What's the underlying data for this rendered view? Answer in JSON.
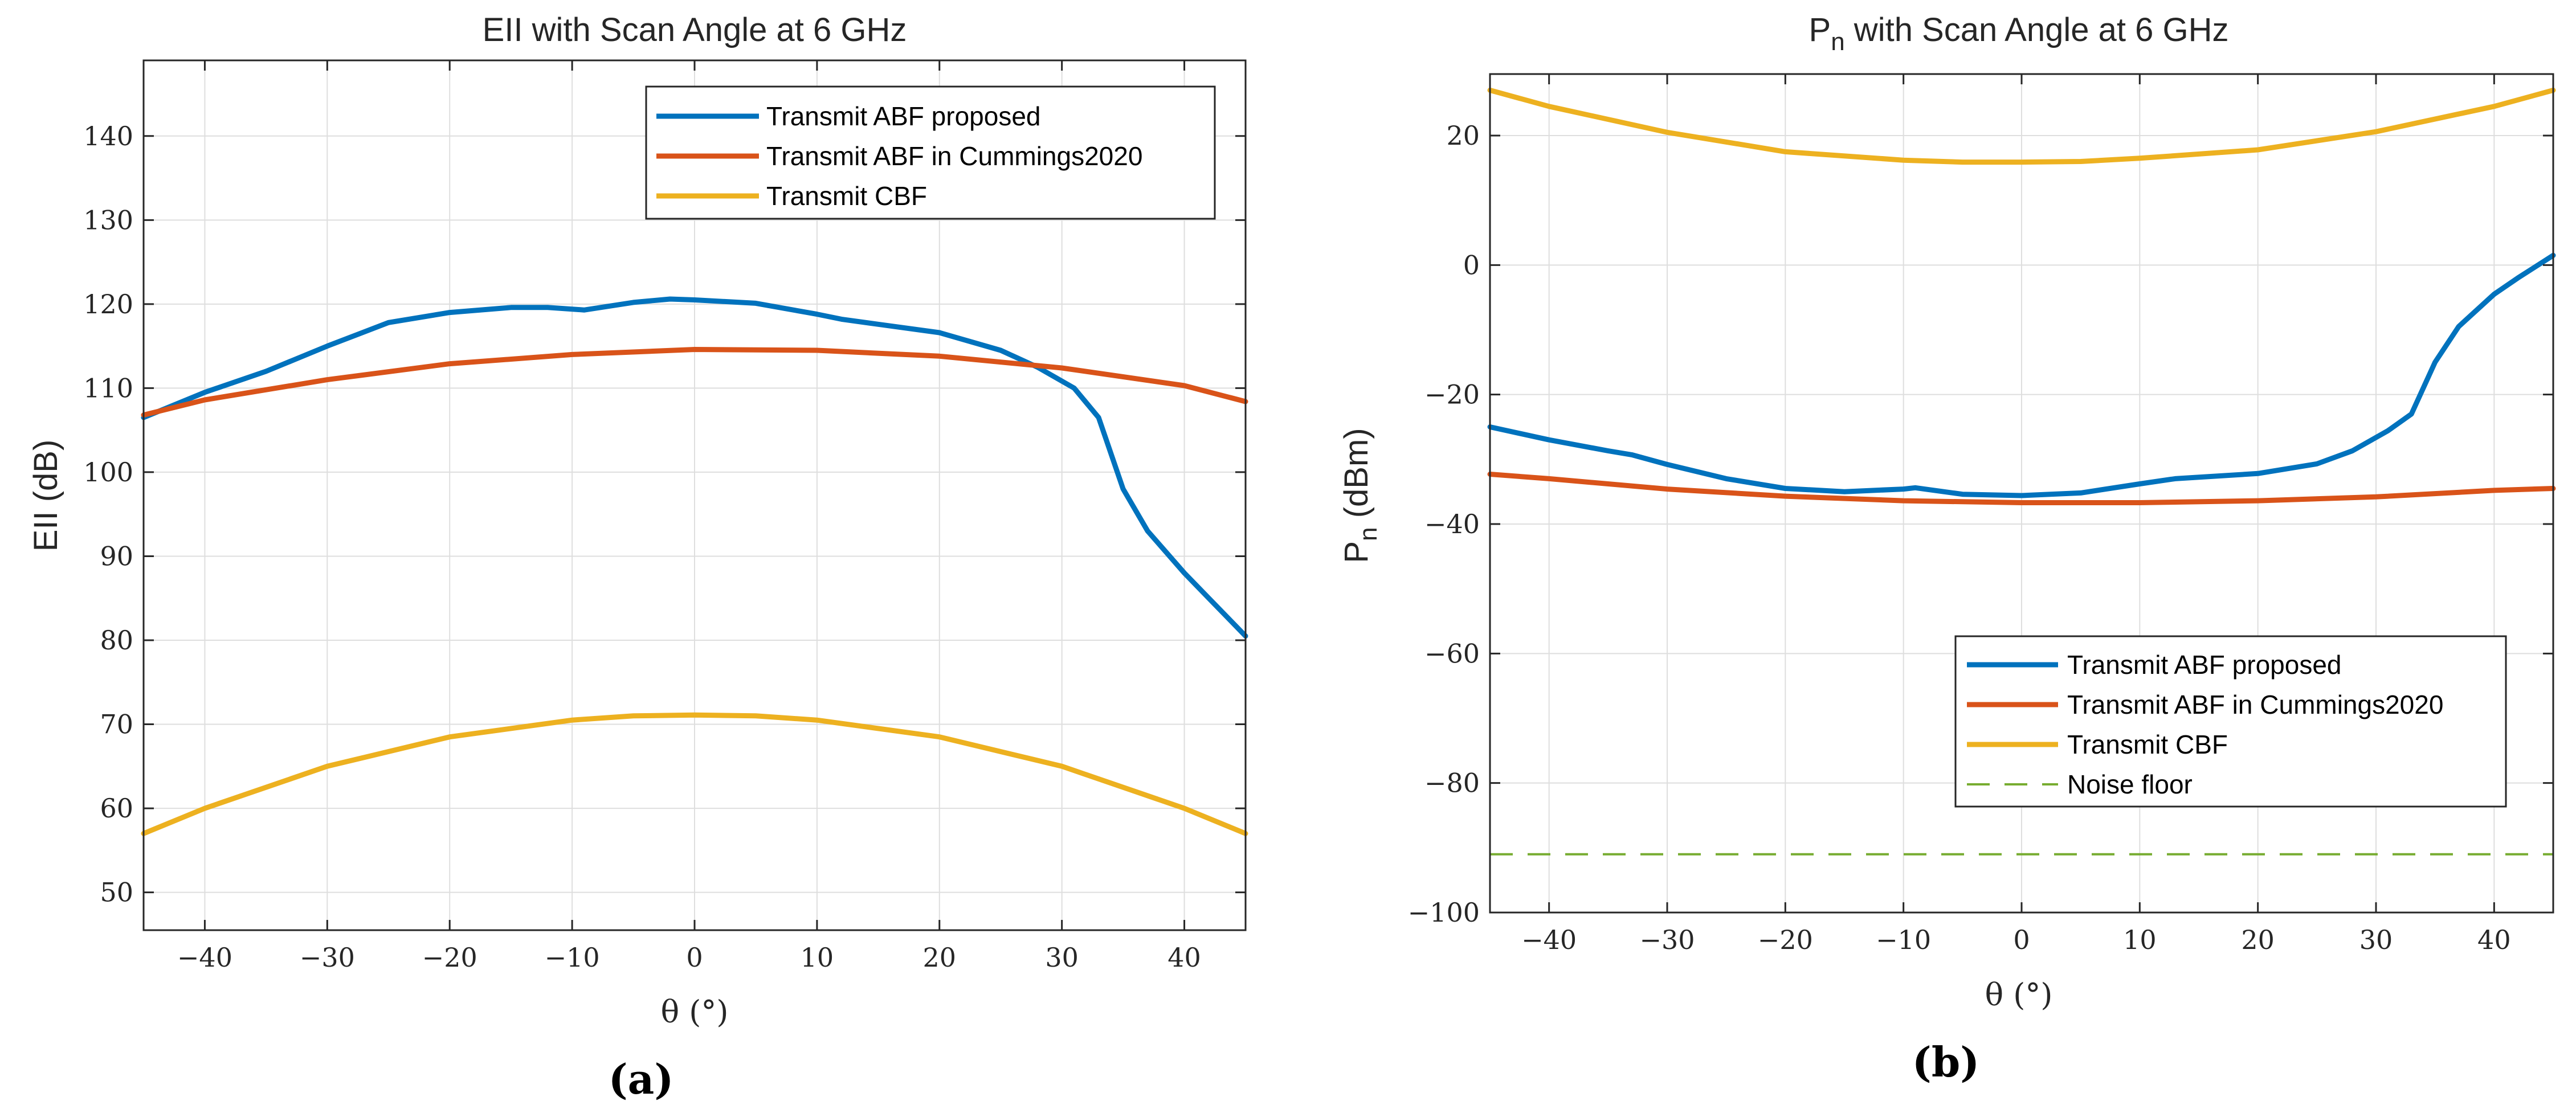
{
  "colors": {
    "blue": "#0072BD",
    "orange": "#D95319",
    "yellow": "#EDB120",
    "green": "#77AC30",
    "grid": "#dedede",
    "axis": "#262626"
  },
  "chart_data": [
    {
      "type": "line",
      "title": "EII with Scan Angle at 6 GHz",
      "xlabel": "θ (°)",
      "ylabel": "EII (dB)",
      "xlim": [
        -45,
        45
      ],
      "ylim": [
        45.5,
        149
      ],
      "xticks": [
        -40,
        -30,
        -20,
        -10,
        0,
        10,
        20,
        30,
        40
      ],
      "yticks": [
        50,
        60,
        70,
        80,
        90,
        100,
        110,
        120,
        130,
        140
      ],
      "grid": true,
      "legend_position": "top-right",
      "caption": "(a)",
      "series": [
        {
          "name": "Transmit ABF proposed",
          "color": "blue",
          "dash": false,
          "x": [
            -45,
            -40,
            -35,
            -30,
            -25,
            -20,
            -15,
            -12,
            -9,
            -5,
            -2,
            0,
            5,
            10,
            12,
            15,
            20,
            25,
            28,
            31,
            33,
            35,
            37,
            40,
            42,
            45
          ],
          "y": [
            106.5,
            109.5,
            112,
            115,
            117.8,
            119,
            119.6,
            119.6,
            119.3,
            120.2,
            120.6,
            120.5,
            120.1,
            118.8,
            118.2,
            117.6,
            116.6,
            114.5,
            112.5,
            110,
            106.5,
            98,
            93,
            88,
            85,
            80.5
          ]
        },
        {
          "name": "Transmit ABF in Cummings2020",
          "color": "orange",
          "dash": false,
          "x": [
            -45,
            -40,
            -30,
            -20,
            -10,
            0,
            10,
            20,
            30,
            40,
            45
          ],
          "y": [
            106.8,
            108.6,
            111,
            112.9,
            114,
            114.6,
            114.5,
            113.8,
            112.4,
            110.3,
            108.4
          ]
        },
        {
          "name": "Transmit CBF",
          "color": "yellow",
          "dash": false,
          "x": [
            -45,
            -40,
            -30,
            -20,
            -10,
            -5,
            0,
            5,
            10,
            20,
            30,
            40,
            45
          ],
          "y": [
            57,
            60,
            65,
            68.5,
            70.5,
            71,
            71.1,
            71,
            70.5,
            68.5,
            65,
            60,
            57
          ]
        }
      ]
    },
    {
      "type": "line",
      "title": "P",
      "title_subscript": "n",
      "title_rest": " with Scan Angle at 6 GHz",
      "xlabel": "θ (°)",
      "ylabel": "P",
      "ylabel_subscript": "n",
      "ylabel_rest": " (dBm)",
      "xlim": [
        -45,
        45
      ],
      "ylim": [
        -100,
        29.5
      ],
      "xticks": [
        -40,
        -30,
        -20,
        -10,
        0,
        10,
        20,
        30,
        40
      ],
      "yticks": [
        -100,
        -80,
        -60,
        -40,
        -20,
        0,
        20
      ],
      "grid": true,
      "legend_position": "bottom-right",
      "caption": "(b)",
      "series": [
        {
          "name": "Transmit ABF proposed",
          "color": "blue",
          "dash": false,
          "x": [
            -45,
            -40,
            -35,
            -33,
            -30,
            -25,
            -20,
            -15,
            -10,
            -9,
            -5,
            0,
            5,
            10,
            13,
            20,
            25,
            28,
            31,
            33,
            35,
            37,
            40,
            42,
            45
          ],
          "y": [
            -25,
            -27,
            -28.7,
            -29.3,
            -30.8,
            -33,
            -34.5,
            -35,
            -34.6,
            -34.4,
            -35.4,
            -35.6,
            -35.2,
            -33.8,
            -33,
            -32.2,
            -30.7,
            -28.7,
            -25.6,
            -23,
            -15,
            -9.5,
            -4.5,
            -2,
            1.5
          ]
        },
        {
          "name": "Transmit ABF in Cummings2020",
          "color": "orange",
          "dash": false,
          "x": [
            -45,
            -40,
            -30,
            -20,
            -10,
            0,
            10,
            20,
            30,
            40,
            45
          ],
          "y": [
            -32.3,
            -33,
            -34.6,
            -35.7,
            -36.4,
            -36.7,
            -36.7,
            -36.4,
            -35.8,
            -34.8,
            -34.5
          ]
        },
        {
          "name": "Transmit CBF",
          "color": "yellow",
          "dash": false,
          "x": [
            -45,
            -40,
            -30,
            -20,
            -10,
            -5,
            0,
            5,
            10,
            20,
            30,
            40,
            45
          ],
          "y": [
            27,
            24.5,
            20.5,
            17.5,
            16.2,
            15.9,
            15.9,
            16,
            16.5,
            17.8,
            20.6,
            24.5,
            27
          ]
        },
        {
          "name": "Noise floor",
          "color": "green",
          "dash": true,
          "x": [
            -45,
            45
          ],
          "y": [
            -91,
            -91
          ]
        }
      ]
    }
  ]
}
